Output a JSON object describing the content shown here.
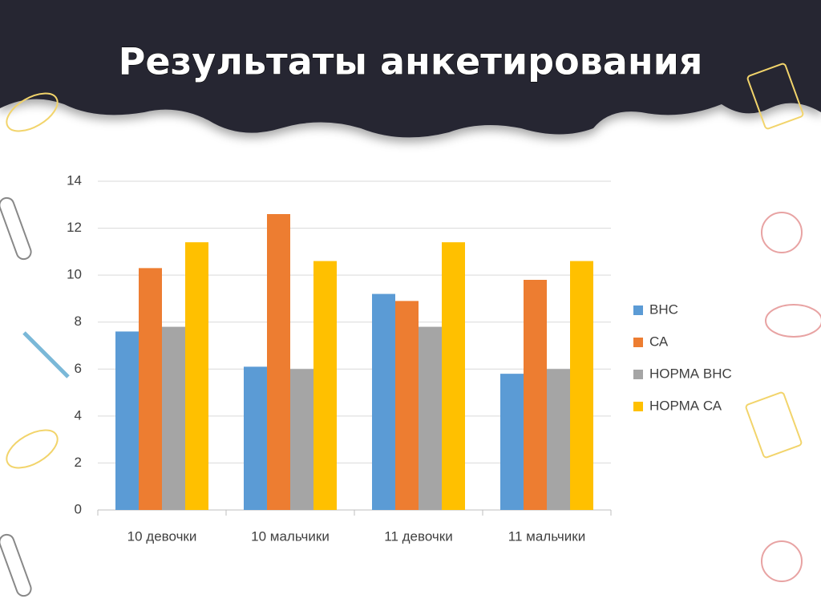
{
  "chart_data": {
    "type": "bar",
    "title": "Результаты анкетирования",
    "categories": [
      "10 девочки",
      "10 мальчики",
      "11 девочки",
      "11 мальчики"
    ],
    "series": [
      {
        "name": "ВНС",
        "color": "#5b9bd5",
        "values": [
          7.6,
          6.1,
          9.2,
          5.8
        ]
      },
      {
        "name": "СА",
        "color": "#ed7d31",
        "values": [
          10.3,
          12.6,
          8.9,
          9.8
        ]
      },
      {
        "name": "НОРМА ВНС",
        "color": "#a5a5a5",
        "values": [
          7.8,
          6.0,
          7.8,
          6.0
        ]
      },
      {
        "name": "НОРМА СА",
        "color": "#ffc000",
        "values": [
          11.4,
          10.6,
          11.4,
          10.6
        ]
      }
    ],
    "ylim": [
      0,
      14
    ],
    "yticks": [
      0,
      2,
      4,
      6,
      8,
      10,
      12,
      14
    ],
    "grid": true,
    "legend": "right"
  }
}
